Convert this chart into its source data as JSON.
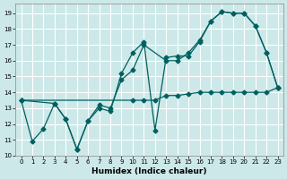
{
  "xlabel": "Humidex (Indice chaleur)",
  "bg_color": "#cce8e8",
  "grid_color": "#ffffff",
  "line_color": "#006060",
  "xlim": [
    -0.5,
    23.5
  ],
  "ylim": [
    10.0,
    19.6
  ],
  "yticks": [
    10,
    11,
    12,
    13,
    14,
    15,
    16,
    17,
    18,
    19
  ],
  "xticks": [
    0,
    1,
    2,
    3,
    4,
    5,
    6,
    7,
    8,
    9,
    10,
    11,
    12,
    13,
    14,
    15,
    16,
    17,
    18,
    19,
    20,
    21,
    22,
    23
  ],
  "line1_x": [
    0,
    1,
    2,
    3,
    4,
    5,
    6,
    7,
    8,
    9,
    10,
    11,
    12,
    13,
    14,
    15,
    16,
    17,
    18,
    19,
    20,
    21,
    22,
    23
  ],
  "line1_y": [
    13.5,
    10.9,
    11.7,
    13.3,
    12.3,
    10.4,
    12.2,
    13.0,
    12.8,
    15.2,
    16.5,
    17.2,
    11.6,
    16.2,
    16.3,
    16.3,
    17.2,
    18.5,
    19.1,
    19.0,
    19.0,
    18.2,
    16.5,
    14.3
  ],
  "line2_x": [
    0,
    3,
    4,
    5,
    6,
    7,
    8,
    9,
    10,
    11,
    13,
    14,
    15,
    16,
    17,
    18,
    19,
    20,
    21,
    22,
    23
  ],
  "line2_y": [
    13.5,
    13.3,
    12.3,
    10.4,
    12.2,
    13.2,
    13.0,
    14.8,
    15.4,
    17.0,
    16.0,
    16.0,
    16.5,
    17.3,
    18.5,
    19.1,
    19.0,
    19.0,
    18.2,
    16.5,
    14.3
  ],
  "line3_x": [
    0,
    10,
    11,
    12,
    13,
    14,
    15,
    16,
    17,
    18,
    19,
    20,
    21,
    22,
    23
  ],
  "line3_y": [
    13.5,
    13.5,
    13.5,
    13.5,
    13.8,
    13.8,
    13.9,
    14.0,
    14.0,
    14.0,
    14.0,
    14.0,
    14.0,
    14.0,
    14.3
  ]
}
